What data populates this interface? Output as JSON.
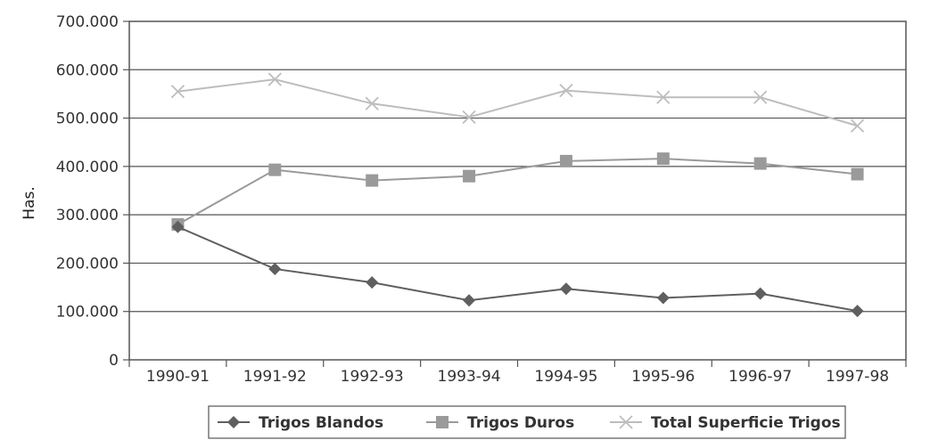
{
  "chart_data": {
    "type": "line",
    "title": "",
    "xlabel": "",
    "ylabel": "Has.",
    "categories": [
      "1990-91",
      "1991-92",
      "1992-93",
      "1993-94",
      "1994-95",
      "1995-96",
      "1996-97",
      "1997-98"
    ],
    "ylim": [
      0,
      700000
    ],
    "yticks": [
      0,
      100000,
      200000,
      300000,
      400000,
      500000,
      600000,
      700000
    ],
    "ytick_labels": [
      "0",
      "100.000",
      "200.000",
      "300.000",
      "400.000",
      "500.000",
      "600.000",
      "700.000"
    ],
    "grid": "horizontal",
    "legend_position": "bottom",
    "series": [
      {
        "name": "Trigos Blandos",
        "marker": "diamond",
        "color": "#5f5f5f",
        "values": [
          275000,
          188000,
          160000,
          123000,
          147000,
          128000,
          137000,
          101000
        ]
      },
      {
        "name": "Trigos Duros",
        "marker": "square",
        "color": "#9a9a9a",
        "values": [
          280000,
          393000,
          371000,
          380000,
          411000,
          416000,
          406000,
          384000
        ]
      },
      {
        "name": "Total Superficie Trigos",
        "marker": "x",
        "color": "#bdbdbd",
        "values": [
          555000,
          580000,
          530000,
          502000,
          557000,
          543000,
          543000,
          484000
        ]
      }
    ]
  }
}
